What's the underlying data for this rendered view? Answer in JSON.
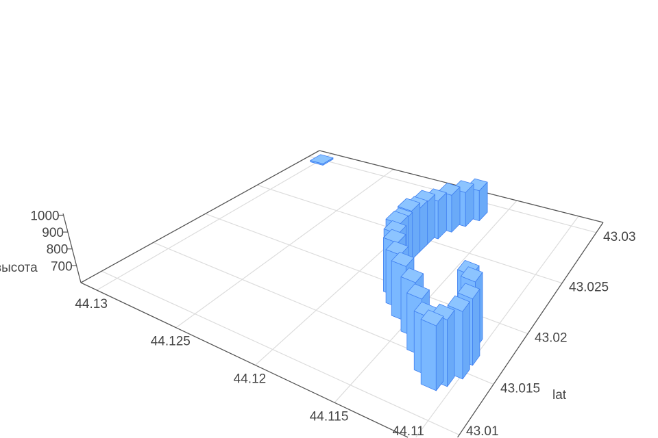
{
  "chart_data": {
    "type": "bar3d",
    "xlabel": "",
    "ylabel": "lat",
    "zlabel": "высота",
    "x_ticks": [
      "44.11",
      "44.115",
      "44.12",
      "44.125",
      "44.13"
    ],
    "y_ticks": [
      "43.01",
      "43.015",
      "43.02",
      "43.025",
      "43.03"
    ],
    "z_ticks": [
      "700",
      "800",
      "900",
      "1000"
    ],
    "xlim": [
      44.108,
      44.131
    ],
    "ylim": [
      43.008,
      43.031
    ],
    "zlim": [
      600,
      1000
    ],
    "grid": true,
    "bar_color": "#7ab8ff",
    "edge_color": "#3f7ff0",
    "points": [
      {
        "lon": 44.1167,
        "lat": 43.0287,
        "z": 880
      },
      {
        "lon": 44.1172,
        "lat": 43.0278,
        "z": 900
      },
      {
        "lon": 44.1177,
        "lat": 43.0269,
        "z": 910
      },
      {
        "lon": 44.1181,
        "lat": 43.0259,
        "z": 900
      },
      {
        "lon": 44.1184,
        "lat": 43.025,
        "z": 920
      },
      {
        "lon": 44.1184,
        "lat": 43.0241,
        "z": 910
      },
      {
        "lon": 44.1184,
        "lat": 43.0232,
        "z": 930
      },
      {
        "lon": 44.1184,
        "lat": 43.0223,
        "z": 900
      },
      {
        "lon": 44.1181,
        "lat": 43.0213,
        "z": 920
      },
      {
        "lon": 44.1177,
        "lat": 43.0204,
        "z": 900
      },
      {
        "lon": 44.1172,
        "lat": 43.0195,
        "z": 890
      },
      {
        "lon": 44.1165,
        "lat": 43.0186,
        "z": 870
      },
      {
        "lon": 44.1156,
        "lat": 43.0177,
        "z": 860
      },
      {
        "lon": 44.1144,
        "lat": 43.0167,
        "z": 840
      },
      {
        "lon": 44.1133,
        "lat": 43.0154,
        "z": 830
      },
      {
        "lon": 44.1121,
        "lat": 43.014,
        "z": 820
      },
      {
        "lon": 44.1112,
        "lat": 43.0131,
        "z": 830
      },
      {
        "lon": 44.1108,
        "lat": 43.0138,
        "z": 840
      },
      {
        "lon": 44.1103,
        "lat": 43.0149,
        "z": 850
      },
      {
        "lon": 44.1103,
        "lat": 43.0163,
        "z": 860
      },
      {
        "lon": 44.1108,
        "lat": 43.0177,
        "z": 880
      },
      {
        "lon": 44.1115,
        "lat": 43.0186,
        "z": 870
      },
      {
        "lon": 44.1299,
        "lat": 43.0299,
        "z": 605
      }
    ]
  }
}
